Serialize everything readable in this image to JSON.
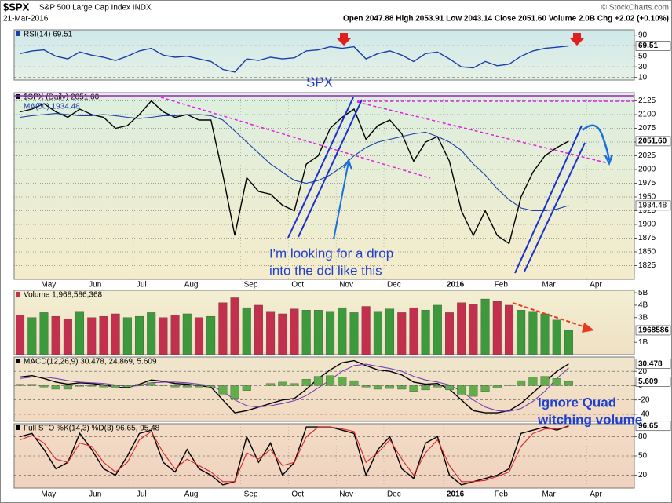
{
  "header": {
    "symbol": "$SPX",
    "name": "S&P 500 Large Cap Index INDX",
    "date": "21-Mar-2016",
    "quote": "Open 2047.88 High 2053.91 Low 2043.14 Close 2051.60 Volume 2.0B Chg +2.02 (+0.10%)",
    "credit": "© StockCharts.com"
  },
  "annotations": [
    "SPX",
    "I'm looking for a drop",
    "into the dcl like this",
    "Ignore Quad",
    "witching volume"
  ],
  "chart_data": [
    {
      "type": "line",
      "title": "RSI(14) 69.51",
      "ylim": [
        5,
        100
      ],
      "yticks": [
        10,
        30,
        50,
        70,
        90
      ],
      "grid": true,
      "series": [
        {
          "name": "RSI(14)",
          "color": "#1a3fa8",
          "values": [
            55,
            60,
            62,
            50,
            45,
            58,
            52,
            48,
            42,
            50,
            60,
            65,
            52,
            48,
            50,
            45,
            40,
            25,
            20,
            45,
            42,
            48,
            45,
            47,
            60,
            62,
            68,
            65,
            68,
            45,
            55,
            60,
            52,
            40,
            55,
            58,
            45,
            30,
            28,
            40,
            32,
            35,
            50,
            60,
            65,
            67,
            69.51,
            null,
            null,
            null,
            null,
            null
          ]
        }
      ]
    },
    {
      "type": "line",
      "title": "$SPX (Daily) 2051.60",
      "ylim": [
        1800,
        2140
      ],
      "yticks": [
        1825,
        1850,
        1875,
        1900,
        1925,
        1950,
        1975,
        2000,
        2025,
        2050,
        2075,
        2100,
        2125
      ],
      "grid": true,
      "categories": [
        null,
        null,
        "May",
        null,
        null,
        null,
        "Jun",
        null,
        null,
        null,
        "Jul",
        null,
        null,
        null,
        "Aug",
        null,
        null,
        null,
        null,
        "Sep",
        null,
        null,
        null,
        "Oct",
        null,
        null,
        null,
        "Nov",
        null,
        null,
        null,
        "Dec",
        null,
        null,
        null,
        null,
        "2016",
        null,
        null,
        null,
        "Feb",
        null,
        null,
        null,
        "Mar",
        null,
        null,
        null,
        "Apr",
        null,
        null,
        null
      ],
      "series": [
        {
          "name": "$SPX (Daily) 2051.60",
          "color": "#000000",
          "values": [
            2105,
            2110,
            2120,
            2105,
            2095,
            2110,
            2100,
            2095,
            2075,
            2080,
            2100,
            2125,
            2105,
            2095,
            2100,
            2090,
            2090,
            1990,
            1880,
            1985,
            1960,
            1955,
            1935,
            1925,
            2010,
            2025,
            2075,
            2095,
            2110,
            2055,
            2080,
            2090,
            2065,
            2015,
            2050,
            2060,
            2015,
            1925,
            1880,
            1925,
            1880,
            1865,
            1950,
            1995,
            2025,
            2040,
            2051.6,
            null,
            null,
            null,
            null,
            null
          ],
          "value_labels": [
            null,
            null,
            null,
            null,
            null,
            null,
            null,
            null,
            null,
            null,
            null,
            null,
            null,
            null,
            null,
            null,
            null,
            null,
            null,
            null,
            null,
            null,
            null,
            null,
            null,
            null,
            null,
            null,
            null,
            null,
            null,
            null,
            null,
            null,
            null,
            null,
            null,
            null,
            null,
            null,
            null,
            null,
            null,
            null,
            null,
            null,
            "2051.60",
            null,
            null,
            null,
            null,
            null
          ]
        },
        {
          "name": "MA(50) 1934.48",
          "color": "#1a3fa8",
          "values": [
            2095,
            2098,
            2100,
            2102,
            2100,
            2098,
            2098,
            2100,
            2098,
            2095,
            2093,
            2095,
            2098,
            2098,
            2100,
            2100,
            2098,
            2090,
            2070,
            2050,
            2030,
            2010,
            1995,
            1980,
            1975,
            1980,
            1990,
            2005,
            2025,
            2040,
            2050,
            2055,
            2060,
            2065,
            2068,
            2060,
            2050,
            2035,
            2010,
            1990,
            1965,
            1945,
            1930,
            1925,
            1925,
            1928,
            1934.48,
            null,
            null,
            null,
            null,
            null
          ]
        }
      ]
    },
    {
      "type": "bar",
      "title": "Volume 1,968,586,368",
      "ylim": [
        0,
        5.2
      ],
      "yticks": [
        {
          "value": 1,
          "label": "1B"
        },
        {
          "value": 3,
          "label": "3B"
        },
        {
          "value": 4,
          "label": "4B"
        },
        {
          "value": 5,
          "label": "5B"
        }
      ],
      "grid": false,
      "up_color": "#3c9a3c",
      "down_color": "#c2304e",
      "series": [
        {
          "name": "Volume",
          "color": "#c2304e",
          "values": [
            3.2,
            3.0,
            3.4,
            3.1,
            2.9,
            3.5,
            3.0,
            3.1,
            3.3,
            3.0,
            3.1,
            3.4,
            3.0,
            3.2,
            3.3,
            3.0,
            3.1,
            4.2,
            4.6,
            3.8,
            4.0,
            3.5,
            3.3,
            3.7,
            3.6,
            3.6,
            3.5,
            3.8,
            3.4,
            3.9,
            3.5,
            3.7,
            3.4,
            3.8,
            3.6,
            4.0,
            3.4,
            4.2,
            4.1,
            4.5,
            4.3,
            4.0,
            3.6,
            3.5,
            3.3,
            2.8,
            1.968586368,
            null,
            null,
            null,
            null,
            null
          ],
          "value_labels": [
            null,
            null,
            null,
            null,
            null,
            null,
            null,
            null,
            null,
            null,
            null,
            null,
            null,
            null,
            null,
            null,
            null,
            null,
            null,
            null,
            null,
            null,
            null,
            null,
            null,
            null,
            null,
            null,
            null,
            null,
            null,
            null,
            null,
            null,
            null,
            null,
            null,
            null,
            null,
            null,
            null,
            null,
            null,
            null,
            null,
            null,
            "1968586",
            null,
            null,
            null,
            null,
            null
          ]
        }
      ]
    },
    {
      "type": "line",
      "title": "MACD(12,26,9) 30.478, 24.869, 5.609",
      "ylim": [
        -50,
        40
      ],
      "yticks": [
        -40,
        -20,
        0,
        20
      ],
      "grid": true,
      "series": [
        {
          "name": "MACD",
          "color": "#000000",
          "values": [
            12,
            14,
            10,
            5,
            2,
            4,
            3,
            1,
            -2,
            -3,
            2,
            8,
            6,
            3,
            2,
            0,
            -2,
            -20,
            -38,
            -35,
            -30,
            -25,
            -20,
            -18,
            -5,
            10,
            22,
            32,
            35,
            28,
            22,
            20,
            15,
            5,
            2,
            3,
            -5,
            -20,
            -35,
            -38,
            -38,
            -35,
            -25,
            -10,
            5,
            20,
            30.478,
            null,
            null,
            null,
            null,
            null
          ]
        },
        {
          "name": "Signal",
          "color": "#7a3fb8",
          "values": [
            10,
            12,
            12,
            10,
            7,
            5,
            4,
            3,
            1,
            -1,
            0,
            4,
            5,
            5,
            4,
            2,
            0,
            -8,
            -20,
            -28,
            -30,
            -28,
            -25,
            -21,
            -14,
            -3,
            8,
            20,
            28,
            30,
            27,
            24,
            20,
            13,
            8,
            5,
            1,
            -8,
            -20,
            -30,
            -35,
            -36,
            -32,
            -22,
            -8,
            10,
            24.869,
            null,
            null,
            null,
            null,
            null
          ]
        },
        {
          "name": "Histogram",
          "type": "bar",
          "color": "#5fae4a",
          "values": [
            2,
            2,
            -2,
            -5,
            -5,
            -1,
            -1,
            -2,
            -3,
            -2,
            2,
            4,
            1,
            -2,
            -2,
            -2,
            -2,
            -12,
            -18,
            -7,
            0,
            3,
            5,
            3,
            9,
            13,
            14,
            12,
            7,
            -2,
            -5,
            -4,
            -5,
            -8,
            -6,
            -2,
            -6,
            -12,
            -15,
            -8,
            -3,
            1,
            7,
            12,
            13,
            10,
            5.609,
            null,
            null,
            null,
            null,
            null
          ]
        }
      ]
    },
    {
      "type": "line",
      "title": "Full STO %K(14,3) %D(3) 96.65, 95.48",
      "ylim": [
        0,
        100
      ],
      "yticks": [
        20,
        50,
        80
      ],
      "grid": true,
      "categories": [
        null,
        null,
        "May",
        null,
        null,
        null,
        "Jun",
        null,
        null,
        null,
        "Jul",
        null,
        null,
        null,
        "Aug",
        null,
        null,
        null,
        null,
        "Sep",
        null,
        null,
        null,
        "Oct",
        null,
        null,
        null,
        "Nov",
        null,
        null,
        null,
        "Dec",
        null,
        null,
        null,
        null,
        "2016",
        null,
        null,
        null,
        "Feb",
        null,
        null,
        null,
        "Mar",
        null,
        null,
        null,
        "Apr",
        null,
        null,
        null
      ],
      "series": [
        {
          "name": "%K",
          "color": "#000000",
          "values": [
            80,
            85,
            60,
            30,
            40,
            85,
            60,
            30,
            20,
            50,
            85,
            90,
            40,
            25,
            60,
            30,
            20,
            5,
            10,
            80,
            40,
            70,
            20,
            40,
            95,
            95,
            95,
            90,
            85,
            20,
            60,
            80,
            30,
            15,
            70,
            80,
            20,
            5,
            10,
            15,
            20,
            30,
            85,
            90,
            95,
            90,
            96.65,
            null,
            null,
            null,
            null,
            null
          ]
        },
        {
          "name": "%D",
          "color": "#d8262a",
          "values": [
            75,
            82,
            70,
            45,
            40,
            70,
            65,
            40,
            25,
            40,
            75,
            88,
            55,
            30,
            45,
            35,
            25,
            10,
            10,
            55,
            45,
            60,
            35,
            40,
            80,
            95,
            95,
            92,
            88,
            40,
            55,
            75,
            45,
            20,
            55,
            75,
            35,
            10,
            10,
            12,
            18,
            25,
            65,
            85,
            92,
            92,
            95.48,
            null,
            null,
            null,
            null,
            null
          ]
        }
      ]
    }
  ]
}
